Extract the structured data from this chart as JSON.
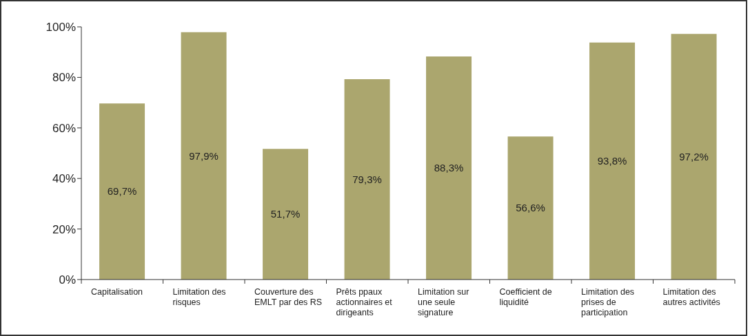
{
  "chart_data": {
    "type": "bar",
    "categories": [
      "Capitalisation",
      "Limitation des risques",
      "Couverture des EMLT par des RS",
      "Prêts ppaux actionnaires et dirigeants",
      "Limitation sur une seule signature",
      "Coefficient de liquidité",
      "Limitation des prises de participation",
      "Limitation des autres activités"
    ],
    "values": [
      69.7,
      97.9,
      51.7,
      79.3,
      88.3,
      56.6,
      93.8,
      97.2
    ],
    "value_labels": [
      "69,7%",
      "97,9%",
      "51,7%",
      "79,3%",
      "88,3%",
      "56,6%",
      "93,8%",
      "97,2%"
    ],
    "color": "#aba66e",
    "ylim": [
      0,
      100
    ],
    "yticks": [
      {
        "value": 0,
        "label": "0%"
      },
      {
        "value": 20,
        "label": "20%"
      },
      {
        "value": 40,
        "label": "40%"
      },
      {
        "value": 60,
        "label": "60%"
      },
      {
        "value": 80,
        "label": "80%"
      },
      {
        "value": 100,
        "label": "100%"
      }
    ],
    "grid": false,
    "legend": false
  }
}
